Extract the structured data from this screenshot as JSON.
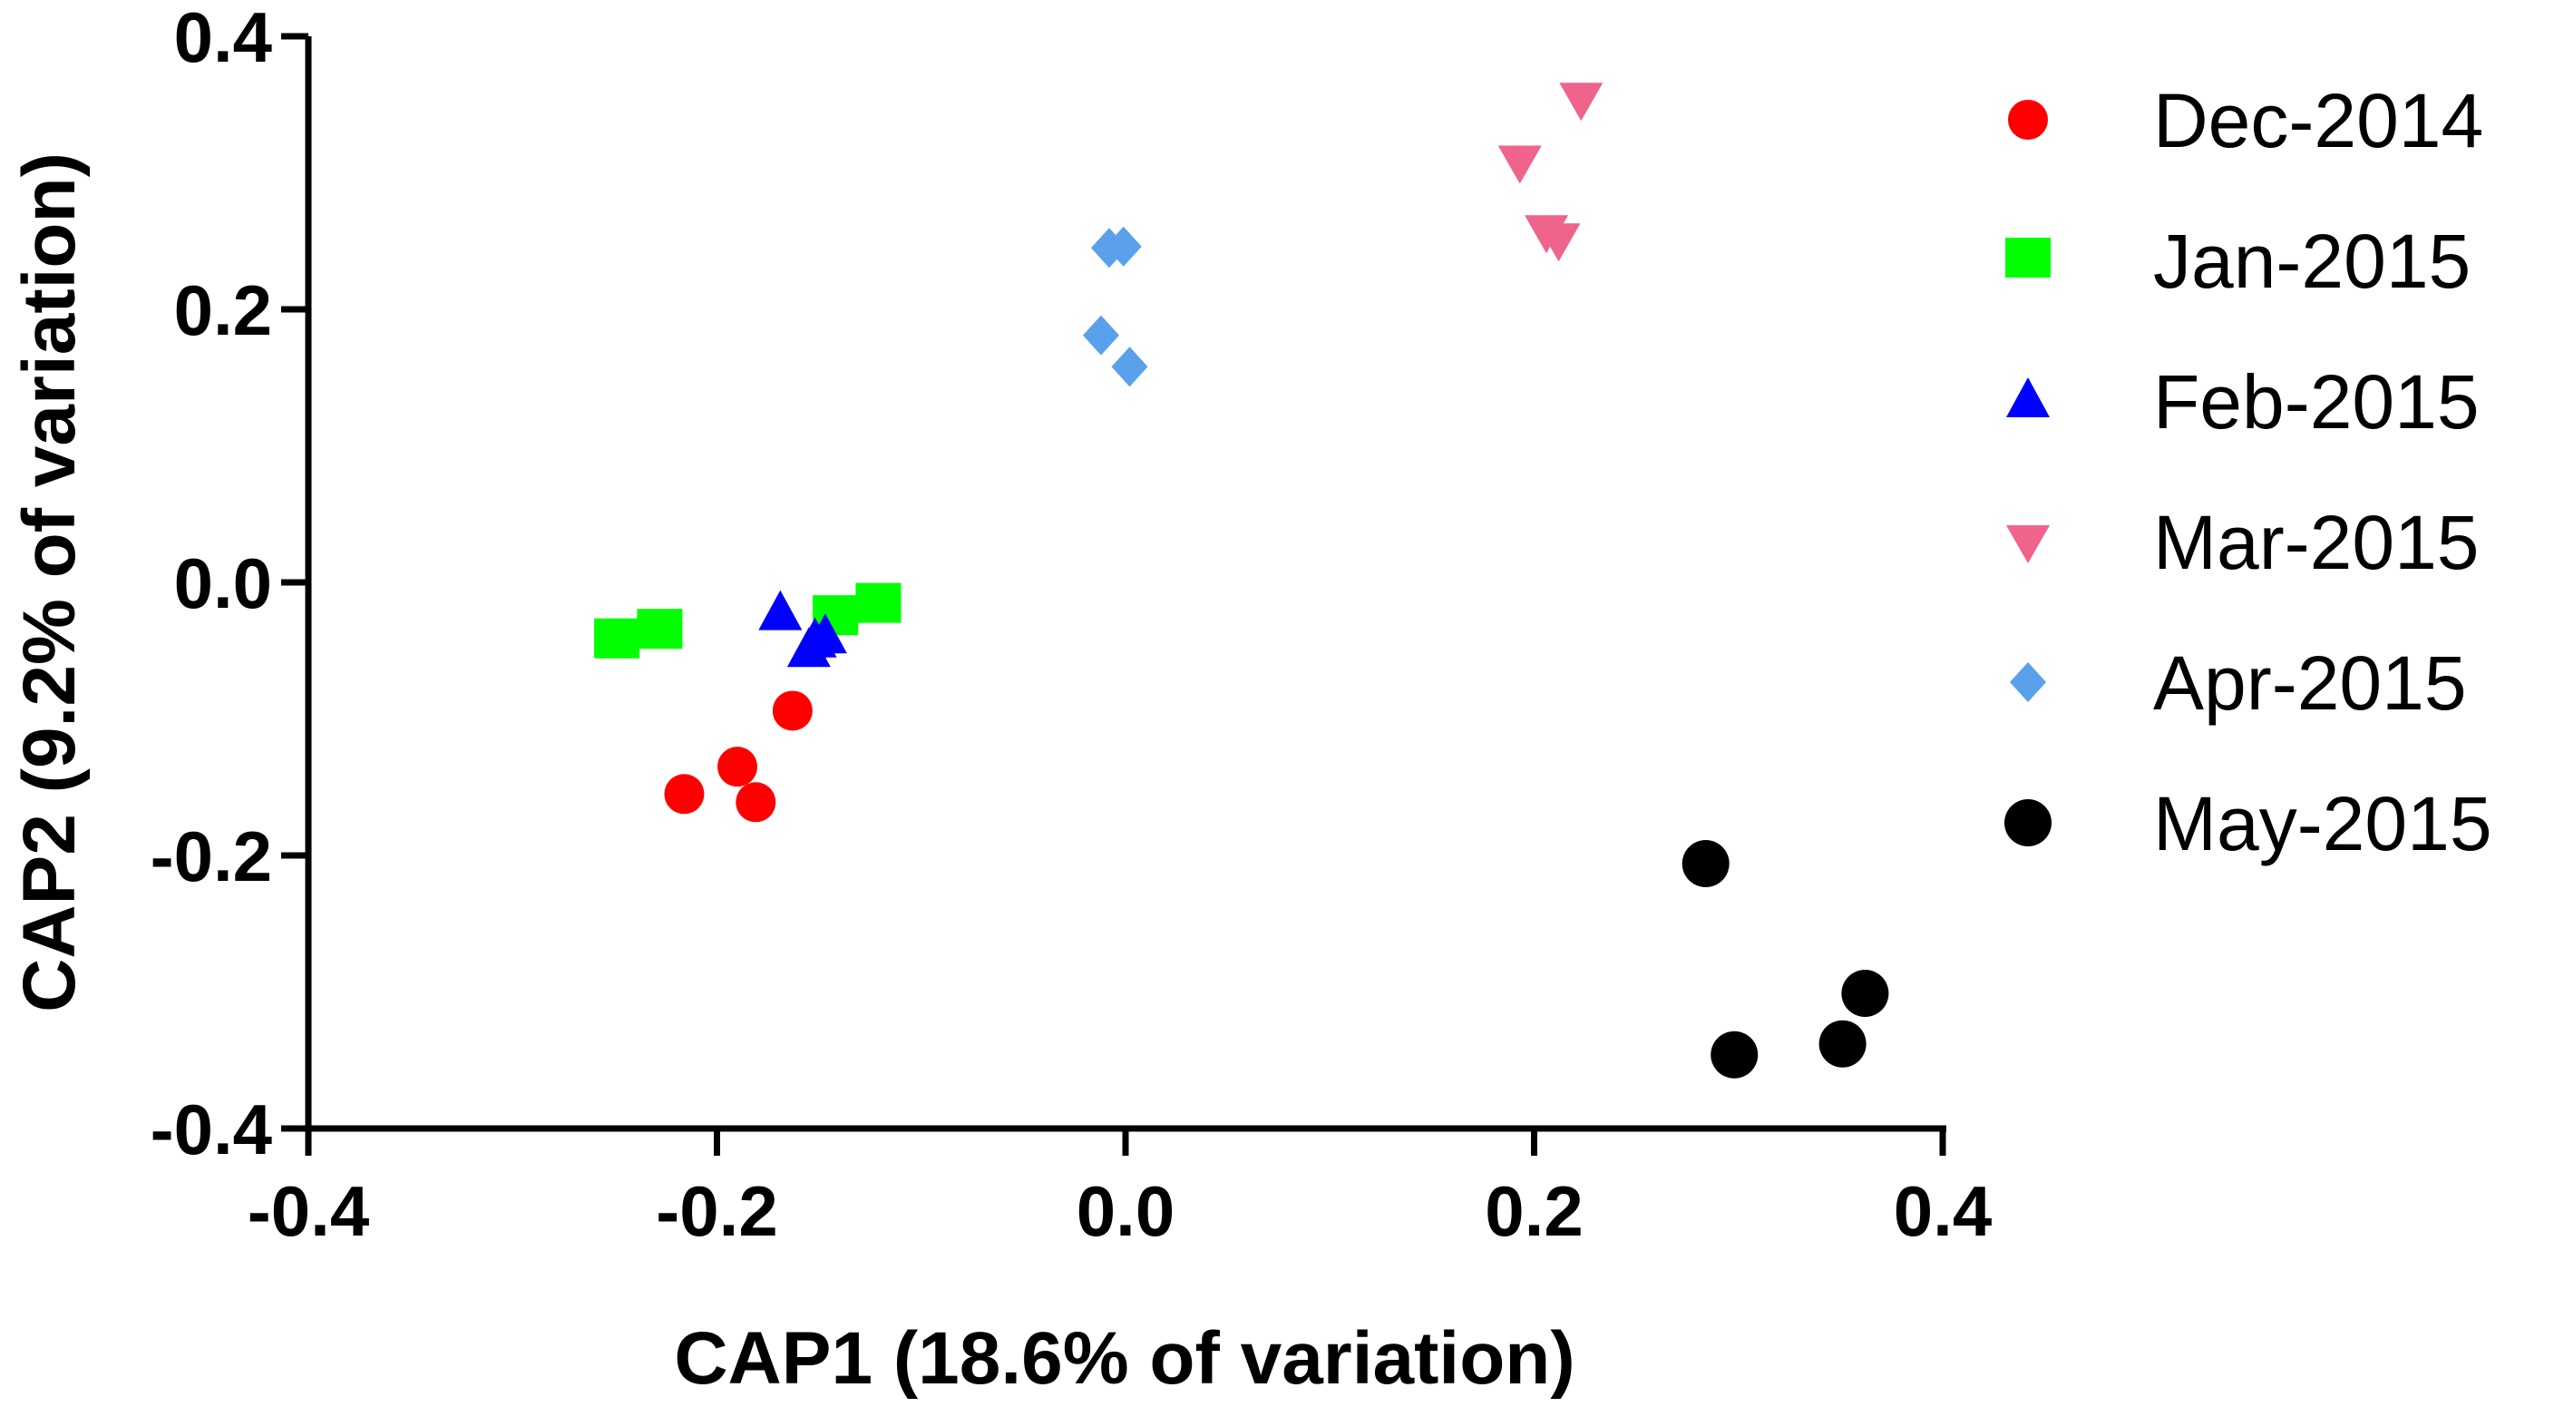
{
  "chart_data": {
    "type": "scatter",
    "title": "",
    "xlabel": "CAP1 (18.6% of variation)",
    "ylabel": "CAP2 (9.2% of variation)",
    "xlim": [
      -0.4,
      0.4
    ],
    "ylim": [
      -0.4,
      0.4
    ],
    "xticks": [
      "-0.4",
      "-0.2",
      "0.0",
      "0.2",
      "0.4"
    ],
    "yticks": [
      "-0.4",
      "-0.2",
      "0.0",
      "0.2",
      "0.4"
    ],
    "legend_position": "right",
    "series": [
      {
        "name": "Dec-2014",
        "marker": "circle",
        "color": "#ff0000",
        "points": [
          [
            -0.216,
            -0.155
          ],
          [
            -0.19,
            -0.135
          ],
          [
            -0.181,
            -0.161
          ],
          [
            -0.163,
            -0.094
          ]
        ]
      },
      {
        "name": "Jan-2015",
        "marker": "square",
        "color": "#00ff00",
        "points": [
          [
            -0.249,
            -0.043
          ],
          [
            -0.228,
            -0.036
          ],
          [
            -0.142,
            -0.026
          ],
          [
            -0.121,
            -0.017
          ]
        ]
      },
      {
        "name": "Feb-2015",
        "marker": "triangle-up",
        "color": "#0000ff",
        "points": [
          [
            -0.169,
            -0.023
          ],
          [
            -0.155,
            -0.05
          ],
          [
            -0.147,
            -0.04
          ],
          [
            -0.152,
            -0.043
          ]
        ]
      },
      {
        "name": "Mar-2015",
        "marker": "triangle-down",
        "color": "#f0648c",
        "points": [
          [
            0.193,
            0.308
          ],
          [
            0.223,
            0.354
          ],
          [
            0.206,
            0.257
          ],
          [
            0.212,
            0.251
          ]
        ]
      },
      {
        "name": "Apr-2015",
        "marker": "diamond",
        "color": "#5aa0ea",
        "points": [
          [
            -0.008,
            0.245
          ],
          [
            -0.001,
            0.246
          ],
          [
            -0.012,
            0.181
          ],
          [
            0.002,
            0.158
          ]
        ]
      },
      {
        "name": "May-2015",
        "marker": "circle",
        "color": "#000000",
        "points": [
          [
            0.284,
            -0.206
          ],
          [
            0.362,
            -0.301
          ],
          [
            0.351,
            -0.338
          ],
          [
            0.298,
            -0.346
          ]
        ]
      }
    ]
  }
}
